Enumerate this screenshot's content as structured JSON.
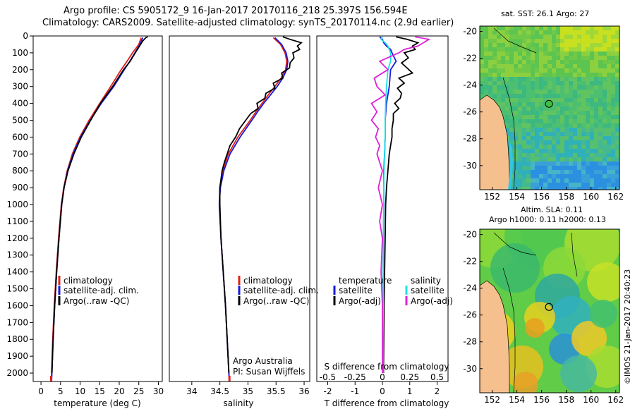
{
  "header": {
    "line1": "Argo profile: CS 5905172_9 16-Jan-2017 20170116_218 25.397S 156.594E",
    "line2": "Climatology: CARS2009. Satellite-adjusted climatology: synTS_20170114.nc (2.9d earlier)"
  },
  "colors": {
    "climatology": "#e0201a",
    "satellite": "#1a1adc",
    "argo": "#000000",
    "satellite_salinity": "#20e0e8",
    "argo_salinity": "#e020d8",
    "land": "#f5c08e"
  },
  "chart_data": [
    {
      "type": "line",
      "title": "",
      "xlabel": "temperature (deg C)",
      "ylabel": "",
      "xlim": [
        -2,
        31
      ],
      "ylim": [
        2050,
        0
      ],
      "xticks": [
        "0",
        "5",
        "10",
        "15",
        "20",
        "25",
        "30"
      ],
      "yticks": [
        "0",
        "100",
        "200",
        "300",
        "400",
        "500",
        "600",
        "700",
        "800",
        "900",
        "1000",
        "1100",
        "1200",
        "1300",
        "1400",
        "1500",
        "1600",
        "1700",
        "1800",
        "1900",
        "2000"
      ],
      "series": [
        {
          "name": "climatology",
          "depth": [
            10,
            50,
            100,
            150,
            200,
            300,
            400,
            500,
            600,
            700,
            800,
            900,
            1000,
            1200,
            1400,
            1600,
            1800,
            2000,
            2050
          ],
          "values": [
            25.6,
            25.0,
            23.4,
            22.0,
            20.5,
            17.8,
            15.0,
            12.3,
            9.9,
            8.0,
            6.7,
            5.8,
            5.2,
            4.5,
            3.9,
            3.4,
            3.0,
            2.7,
            2.6
          ]
        },
        {
          "name": "satellite-adj. clim.",
          "depth": [
            10,
            50,
            100,
            150,
            200,
            300,
            400,
            500,
            600,
            700,
            800,
            900,
            1000,
            1200,
            1400,
            1600,
            1800,
            2000,
            2050
          ],
          "values": [
            26.0,
            25.3,
            24.0,
            22.7,
            21.3,
            18.6,
            15.4,
            12.6,
            10.1,
            8.2,
            6.8,
            5.9,
            5.3,
            4.6,
            4.0,
            3.5,
            3.1,
            2.8,
            2.7
          ]
        },
        {
          "name": "Argo(..raw -QC)",
          "depth": [
            5,
            10,
            30,
            60,
            100,
            150,
            200,
            300,
            400,
            500,
            600,
            700,
            800,
            900,
            1000,
            1200,
            1400,
            1600,
            1800,
            2000
          ],
          "values": [
            27.3,
            26.8,
            26.0,
            25.2,
            24.1,
            22.8,
            21.1,
            18.3,
            15.2,
            12.7,
            10.3,
            8.4,
            6.9,
            5.9,
            5.3,
            4.6,
            4.0,
            3.5,
            3.1,
            2.8
          ]
        }
      ],
      "legend": [
        "climatology",
        "satellite-adj. clim.",
        "Argo(..raw -QC)"
      ]
    },
    {
      "type": "line",
      "title": "",
      "xlabel": "salinity",
      "ylabel": "",
      "xlim": [
        33.6,
        36.1
      ],
      "ylim": [
        2050,
        0
      ],
      "xticks": [
        "34",
        "34.5",
        "35",
        "35.5",
        "36"
      ],
      "series": [
        {
          "name": "climatology",
          "depth": [
            10,
            50,
            100,
            150,
            200,
            250,
            300,
            350,
            400,
            450,
            500,
            600,
            700,
            800,
            900,
            1000,
            1200,
            1400,
            1600,
            1800,
            2000,
            2050
          ],
          "values": [
            35.45,
            35.58,
            35.66,
            35.69,
            35.67,
            35.59,
            35.48,
            35.36,
            35.25,
            35.14,
            35.04,
            34.82,
            34.65,
            34.55,
            34.5,
            34.49,
            34.52,
            34.56,
            34.6,
            34.63,
            34.66,
            34.67
          ]
        },
        {
          "name": "satellite-adj. clim.",
          "depth": [
            10,
            50,
            100,
            150,
            200,
            250,
            300,
            350,
            400,
            450,
            500,
            600,
            700,
            800,
            900,
            1000,
            1200,
            1400,
            1600,
            1800,
            2000,
            2050
          ],
          "values": [
            35.48,
            35.6,
            35.68,
            35.71,
            35.69,
            35.62,
            35.52,
            35.4,
            35.28,
            35.17,
            35.07,
            34.86,
            34.68,
            34.57,
            34.51,
            34.49,
            34.52,
            34.56,
            34.6,
            34.63,
            34.66,
            34.67
          ]
        },
        {
          "name": "Argo(..raw -QC)",
          "depth": [
            5,
            20,
            40,
            60,
            80,
            100,
            130,
            160,
            190,
            220,
            250,
            280,
            310,
            340,
            370,
            400,
            430,
            460,
            500,
            550,
            600,
            650,
            700,
            750,
            800,
            850,
            900,
            950,
            1000,
            1200,
            1400,
            1600,
            1800,
            2000
          ],
          "values": [
            35.62,
            35.75,
            35.95,
            35.88,
            35.92,
            35.8,
            35.82,
            35.75,
            35.74,
            35.6,
            35.62,
            35.45,
            35.48,
            35.32,
            35.3,
            35.16,
            35.18,
            35.05,
            34.96,
            34.85,
            34.78,
            34.68,
            34.63,
            34.58,
            34.54,
            34.52,
            34.5,
            34.5,
            34.5,
            34.52,
            34.56,
            34.6,
            34.63,
            34.66
          ]
        }
      ],
      "legend": [
        "climatology",
        "satellite-adj. clim.",
        "Argo(..raw -QC)"
      ],
      "note_lines": [
        "Argo Australia",
        "PI: Susan Wijffels"
      ]
    },
    {
      "type": "line",
      "title": "",
      "xlabel": "T difference from climatology",
      "xlabel_top": "S difference from climatology",
      "xlim": [
        -2.4,
        2.4
      ],
      "ylim": [
        2050,
        0
      ],
      "xticks_bottom": [
        "-2",
        "-1",
        "0",
        "1",
        "2"
      ],
      "xticks_top": [
        "-0.5",
        "-0.25",
        "0",
        "0.25",
        "0.5"
      ],
      "xticks_top_at": [
        -2,
        -1,
        0,
        1,
        2
      ],
      "series": [
        {
          "name": "temperature satellite",
          "depth": [
            5,
            20,
            40,
            60,
            80,
            100,
            150,
            200,
            300,
            400,
            500,
            600,
            700,
            800,
            900,
            1000,
            1200,
            1400,
            1600,
            1800,
            2000
          ],
          "values": [
            -0.1,
            0.0,
            0.05,
            0.15,
            0.3,
            0.35,
            0.5,
            0.3,
            0.25,
            0.15,
            0.1,
            0.1,
            0.08,
            0.05,
            0.05,
            0.05,
            0.04,
            0.03,
            0.03,
            0.02,
            0.02
          ]
        },
        {
          "name": "temperature Argo(-adj)",
          "depth": [
            5,
            20,
            40,
            60,
            80,
            100,
            130,
            160,
            190,
            220,
            250,
            280,
            310,
            340,
            370,
            400,
            430,
            460,
            500,
            550,
            600,
            650,
            700,
            800,
            900,
            1000,
            1200,
            1400,
            1600,
            1800,
            2000
          ],
          "values": [
            0.5,
            0.9,
            1.3,
            1.1,
            1.2,
            0.8,
            0.95,
            0.7,
            0.9,
            1.1,
            0.6,
            0.8,
            0.55,
            0.7,
            0.65,
            0.45,
            0.6,
            0.4,
            0.4,
            0.35,
            0.35,
            0.3,
            0.25,
            0.2,
            0.15,
            0.12,
            0.1,
            0.08,
            0.06,
            0.05,
            0.04
          ]
        },
        {
          "name": "salinity satellite",
          "depth": [
            5,
            20,
            40,
            60,
            80,
            100,
            150,
            200,
            300,
            400,
            500,
            600,
            700,
            800,
            900,
            1000,
            1200,
            1400,
            1600,
            1800,
            2000
          ],
          "values": [
            0.0,
            -0.05,
            0.1,
            0.2,
            0.25,
            0.3,
            0.3,
            0.2,
            0.15,
            0.12,
            0.1,
            0.1,
            0.08,
            0.06,
            0.05,
            0.05,
            0.04,
            0.03,
            0.03,
            0.02,
            0.02
          ]
        },
        {
          "name": "salinity Argo(-adj)",
          "depth": [
            5,
            20,
            40,
            60,
            80,
            100,
            150,
            200,
            250,
            300,
            350,
            400,
            450,
            500,
            550,
            600,
            650,
            700,
            800,
            900,
            1000,
            1100,
            1200,
            1400,
            1600,
            1800,
            2000
          ],
          "values": [
            1.2,
            1.7,
            1.5,
            1.3,
            0.8,
            0.6,
            -0.1,
            0.2,
            -0.3,
            -0.2,
            0.1,
            -0.4,
            -0.2,
            -0.4,
            -0.15,
            -0.25,
            -0.1,
            -0.2,
            0.0,
            -0.15,
            0.0,
            -0.1,
            0.0,
            -0.05,
            0.0,
            0.0,
            0.0
          ]
        }
      ],
      "legend": {
        "temperature_heading": "temperature",
        "salinity_heading": "salinity",
        "temperature_items": [
          "satellite",
          "Argo(-adj)"
        ],
        "salinity_items": [
          "satellite",
          "Argo(-adj)"
        ]
      }
    },
    {
      "type": "heatmap",
      "title": "sat. SST: 26.1  Argo: 27",
      "xticks": [
        "152",
        "154",
        "156",
        "158",
        "160",
        "162"
      ],
      "yticks": [
        "-20",
        "-22",
        "-24",
        "-26",
        "-28",
        "-30"
      ],
      "xlim": [
        151,
        162.3
      ],
      "ylim": [
        -31.8,
        -19.6
      ],
      "marker": {
        "lon": 156.6,
        "lat": -25.4
      }
    },
    {
      "type": "heatmap",
      "title_line1": "Altim. SLA: 0.11",
      "title_line2": "Argo h1000: 0.11 h2000: 0.13",
      "xticks": [
        "152",
        "154",
        "156",
        "158",
        "160",
        "162"
      ],
      "yticks": [
        "-20",
        "-22",
        "-24",
        "-26",
        "-28",
        "-30"
      ],
      "xlim": [
        151,
        162.3
      ],
      "ylim": [
        -31.8,
        -19.6
      ],
      "marker": {
        "lon": 156.6,
        "lat": -25.4
      }
    }
  ],
  "footer_stamp": "©IMOS 21-Jan-2017 20:40:23"
}
